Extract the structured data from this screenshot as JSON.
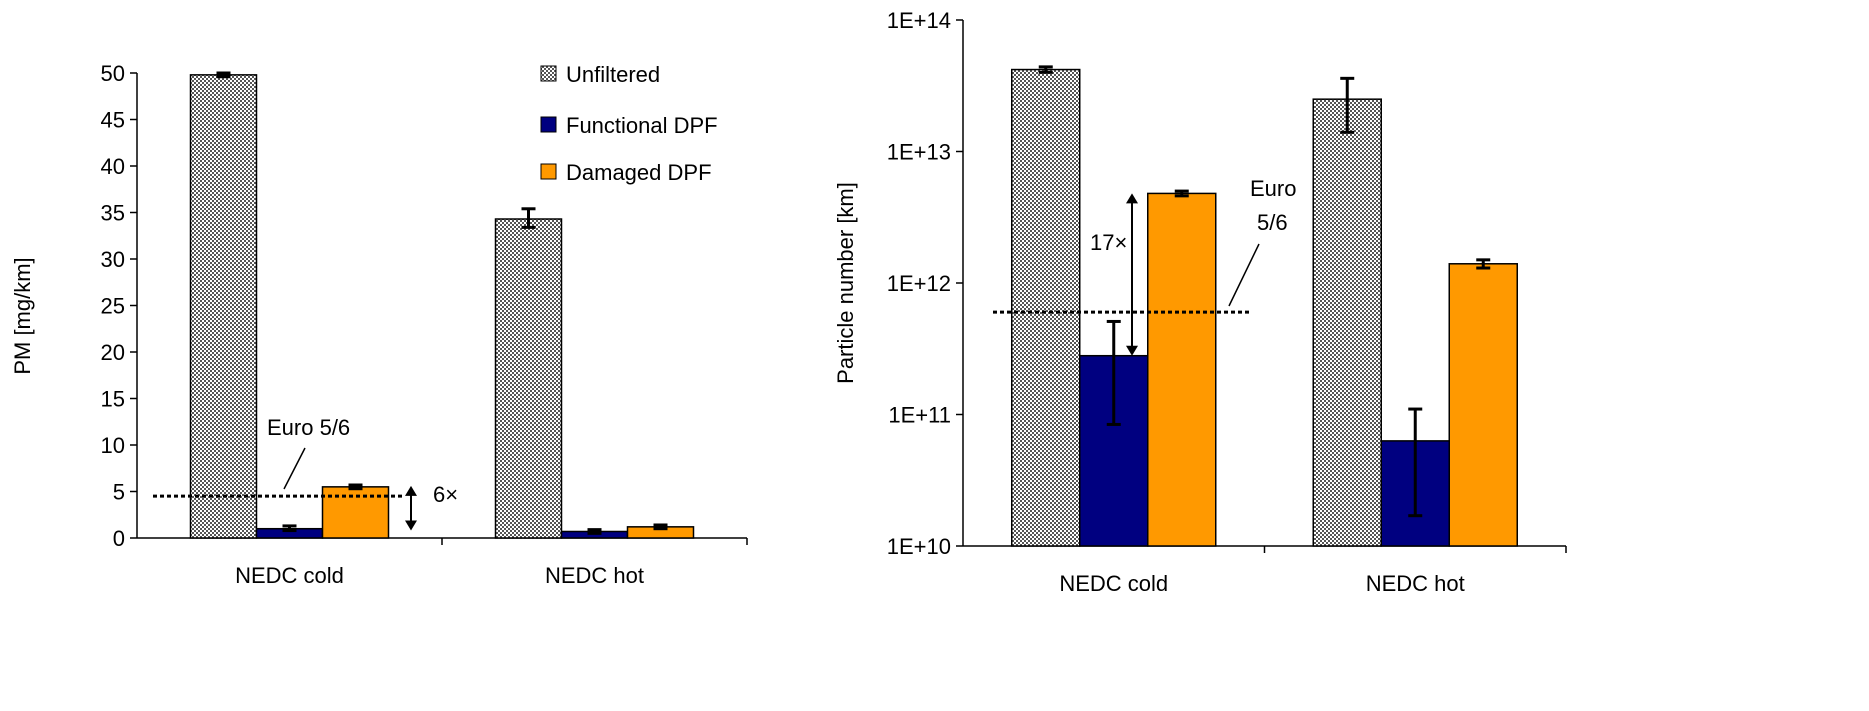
{
  "chart_data": [
    {
      "type": "bar",
      "ylabel": "PM [mg/km]",
      "xlabel": "",
      "scale": "linear",
      "ylim": [
        0,
        50
      ],
      "yticks": [
        0,
        5,
        10,
        15,
        20,
        25,
        30,
        35,
        40,
        45,
        50
      ],
      "categories": [
        "NEDC cold",
        "NEDC hot"
      ],
      "series": [
        {
          "name": "Unfiltered",
          "values": [
            49.8,
            34.3
          ],
          "err_low": [
            49.6,
            33.4
          ],
          "err_high": [
            50.0,
            35.4
          ],
          "pattern": "dotted",
          "color": "#e8e8e8"
        },
        {
          "name": "Functional DPF",
          "values": [
            1.0,
            0.7
          ],
          "err_low": [
            0.8,
            0.5
          ],
          "err_high": [
            1.3,
            0.9
          ],
          "color": "#000080"
        },
        {
          "name": "Damaged DPF",
          "values": [
            5.5,
            1.2
          ],
          "err_low": [
            5.3,
            1.0
          ],
          "err_high": [
            5.7,
            1.4
          ],
          "color": "#ff9900"
        }
      ],
      "limit_line": {
        "value": 4.5,
        "label": "Euro 5/6"
      },
      "arrow_annotation": {
        "label": "6×",
        "from": 0.8,
        "to": 5.6
      },
      "grid": false,
      "legend": "top-right"
    },
    {
      "type": "bar",
      "ylabel": "Particle number [km]",
      "xlabel": "",
      "scale": "log",
      "ylim": [
        10000000000.0,
        100000000000000.0
      ],
      "yticks": [
        10000000000.0,
        100000000000.0,
        1000000000000.0,
        10000000000000.0,
        100000000000000.0
      ],
      "ytick_labels": [
        "1E+10",
        "1E+11",
        "1E+12",
        "1E+13",
        "1E+14"
      ],
      "categories": [
        "NEDC cold",
        "NEDC hot"
      ],
      "series": [
        {
          "name": "Unfiltered",
          "values": [
            42000000000000.0,
            25000000000000.0
          ],
          "err_low": [
            40000000000000.0,
            14000000000000.0
          ],
          "err_high": [
            44000000000000.0,
            36000000000000.0
          ],
          "pattern": "dotted",
          "color": "#e8e8e8"
        },
        {
          "name": "Functional DPF",
          "values": [
            280000000000.0,
            63000000000.0
          ],
          "err_low": [
            84000000000.0,
            17000000000.0
          ],
          "err_high": [
            510000000000.0,
            110000000000.0
          ],
          "color": "#000080"
        },
        {
          "name": "Damaged DPF",
          "values": [
            4800000000000.0,
            1400000000000.0
          ],
          "err_low": [
            4600000000000.0,
            1300000000000.0
          ],
          "err_high": [
            5000000000000.0,
            1500000000000.0
          ],
          "color": "#ff9900"
        }
      ],
      "limit_line": {
        "value": 600000000000.0,
        "label_lines": [
          "Euro",
          "5/6"
        ]
      },
      "arrow_annotation": {
        "label": "17×",
        "from": 280000000000.0,
        "to": 4800000000000.0
      },
      "grid": false,
      "legend": "none"
    }
  ]
}
